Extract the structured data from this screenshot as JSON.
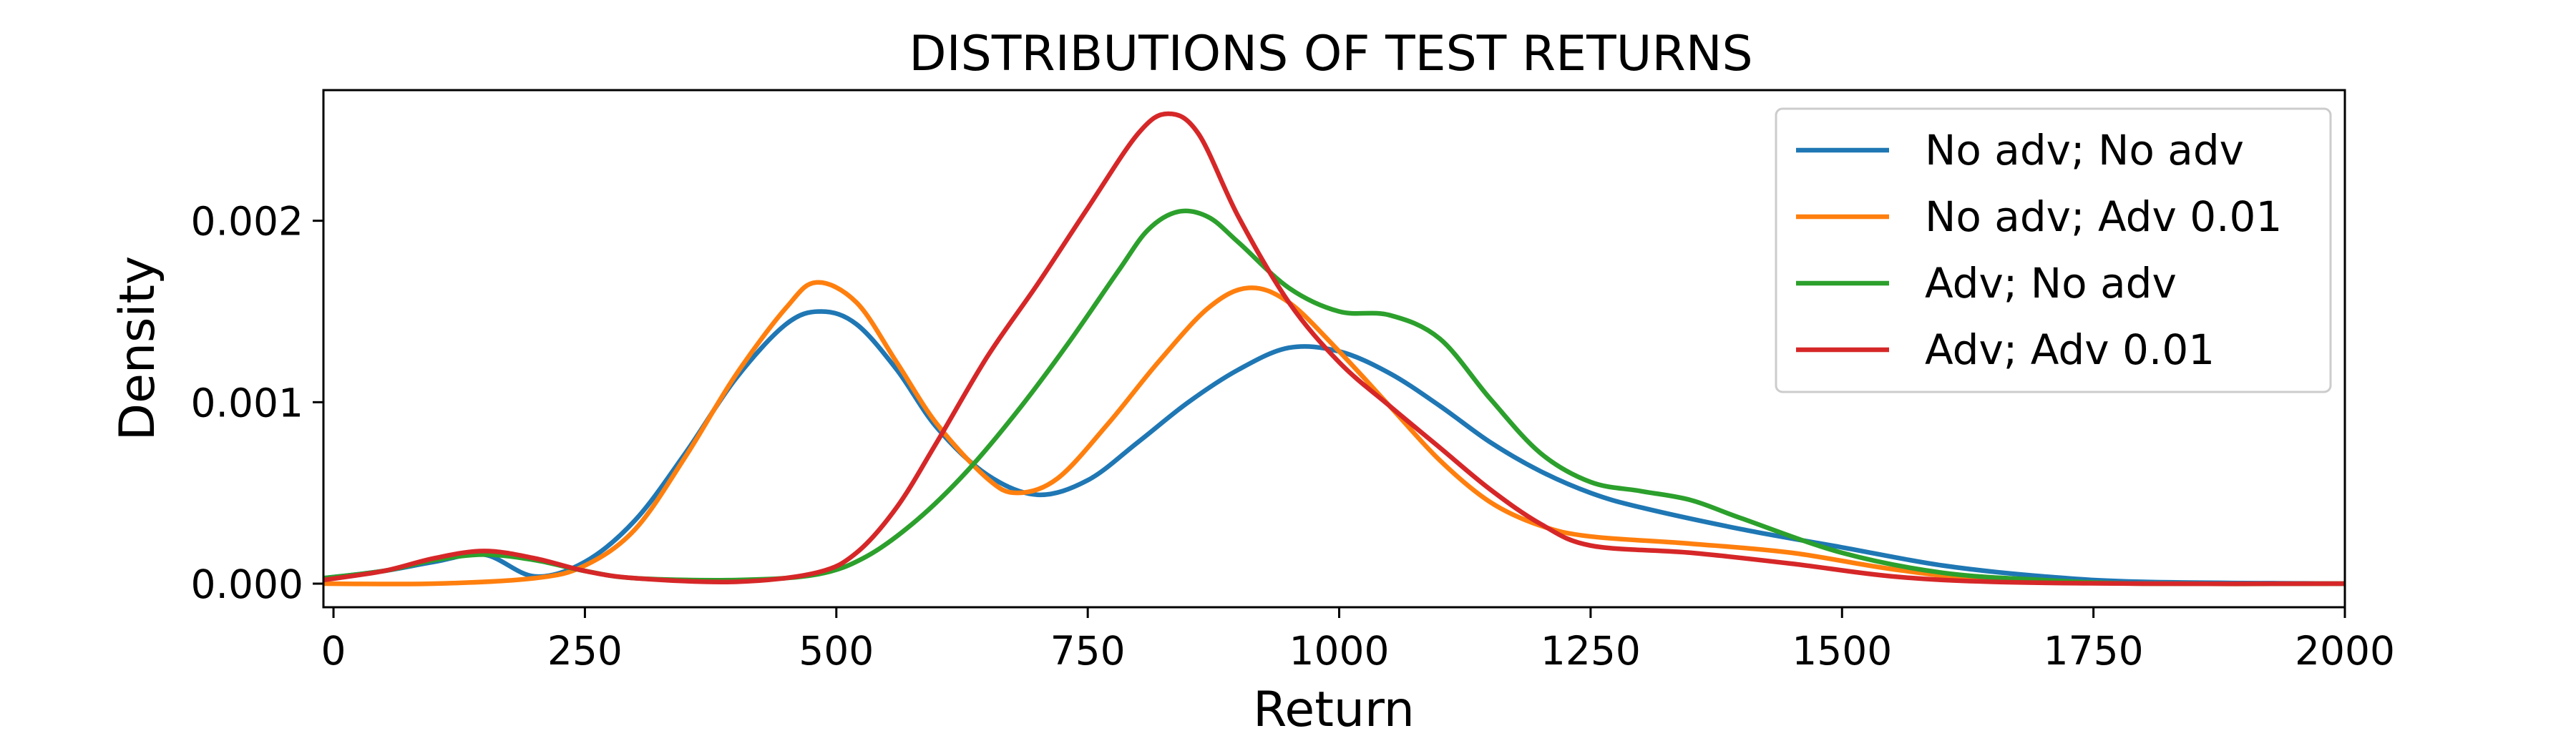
{
  "chart_data": {
    "type": "line",
    "title": "DISTRIBUTIONS OF TEST RETURNS",
    "xlabel": "Return",
    "ylabel": "Density",
    "xlim": [
      -10,
      2000
    ],
    "ylim": [
      -0.00013,
      0.00272
    ],
    "x_ticks": [
      0,
      250,
      500,
      750,
      1000,
      1250,
      1500,
      1750,
      2000
    ],
    "x_tick_labels": [
      "0",
      "250",
      "500",
      "750",
      "1000",
      "1250",
      "1500",
      "1750",
      "2000"
    ],
    "y_ticks": [
      0.0,
      0.001,
      0.002
    ],
    "y_tick_labels": [
      "0.000",
      "0.001",
      "0.002"
    ],
    "grid": false,
    "legend_position": "top-right",
    "series": [
      {
        "name": "No adv; No adv",
        "color": "#1f77b4",
        "points": [
          [
            -10,
            3e-05
          ],
          [
            50,
            7e-05
          ],
          [
            100,
            0.00012
          ],
          [
            150,
            0.00016
          ],
          [
            200,
            4e-05
          ],
          [
            250,
            0.00012
          ],
          [
            300,
            0.00035
          ],
          [
            350,
            0.00072
          ],
          [
            400,
            0.00113
          ],
          [
            450,
            0.00143
          ],
          [
            485,
            0.0015
          ],
          [
            520,
            0.00143
          ],
          [
            560,
            0.00118
          ],
          [
            600,
            0.00086
          ],
          [
            650,
            0.0006
          ],
          [
            700,
            0.00049
          ],
          [
            750,
            0.00057
          ],
          [
            800,
            0.00078
          ],
          [
            850,
            0.001
          ],
          [
            900,
            0.00118
          ],
          [
            950,
            0.0013
          ],
          [
            1000,
            0.00128
          ],
          [
            1050,
            0.00116
          ],
          [
            1100,
            0.00098
          ],
          [
            1150,
            0.00078
          ],
          [
            1200,
            0.00062
          ],
          [
            1250,
            0.0005
          ],
          [
            1300,
            0.00042
          ],
          [
            1400,
            0.0003
          ],
          [
            1500,
            0.0002
          ],
          [
            1600,
            0.0001
          ],
          [
            1700,
            4e-05
          ],
          [
            1800,
            1e-05
          ],
          [
            2000,
            0.0
          ]
        ]
      },
      {
        "name": "No adv; Adv 0.01",
        "color": "#ff7f0e",
        "points": [
          [
            -10,
            0.0
          ],
          [
            100,
            0.0
          ],
          [
            200,
            3e-05
          ],
          [
            250,
            0.0001
          ],
          [
            300,
            0.0003
          ],
          [
            350,
            0.0007
          ],
          [
            400,
            0.00115
          ],
          [
            450,
            0.00152
          ],
          [
            480,
            0.00166
          ],
          [
            520,
            0.00155
          ],
          [
            560,
            0.00122
          ],
          [
            600,
            0.00088
          ],
          [
            650,
            0.00058
          ],
          [
            680,
            0.0005
          ],
          [
            720,
            0.00058
          ],
          [
            770,
            0.00088
          ],
          [
            820,
            0.00122
          ],
          [
            870,
            0.00152
          ],
          [
            910,
            0.00163
          ],
          [
            950,
            0.00155
          ],
          [
            1000,
            0.00128
          ],
          [
            1050,
            0.00098
          ],
          [
            1100,
            0.00068
          ],
          [
            1150,
            0.00045
          ],
          [
            1200,
            0.00032
          ],
          [
            1250,
            0.00026
          ],
          [
            1350,
            0.00022
          ],
          [
            1450,
            0.00017
          ],
          [
            1550,
            8e-05
          ],
          [
            1650,
            2e-05
          ],
          [
            1800,
            0.0
          ],
          [
            2000,
            0.0
          ]
        ]
      },
      {
        "name": "Adv; No adv",
        "color": "#2ca02c",
        "points": [
          [
            -10,
            3e-05
          ],
          [
            50,
            7e-05
          ],
          [
            100,
            0.00013
          ],
          [
            150,
            0.00016
          ],
          [
            200,
            0.00013
          ],
          [
            250,
            7e-05
          ],
          [
            300,
            3e-05
          ],
          [
            400,
            2e-05
          ],
          [
            480,
            5e-05
          ],
          [
            530,
            0.00015
          ],
          [
            580,
            0.00035
          ],
          [
            630,
            0.00062
          ],
          [
            680,
            0.00095
          ],
          [
            730,
            0.00132
          ],
          [
            780,
            0.00172
          ],
          [
            810,
            0.00195
          ],
          [
            840,
            0.00205
          ],
          [
            870,
            0.00202
          ],
          [
            900,
            0.00188
          ],
          [
            950,
            0.00163
          ],
          [
            1000,
            0.0015
          ],
          [
            1050,
            0.00148
          ],
          [
            1100,
            0.00135
          ],
          [
            1150,
            0.00102
          ],
          [
            1200,
            0.00072
          ],
          [
            1250,
            0.00056
          ],
          [
            1300,
            0.00051
          ],
          [
            1350,
            0.00046
          ],
          [
            1400,
            0.00036
          ],
          [
            1500,
            0.00017
          ],
          [
            1600,
            6e-05
          ],
          [
            1700,
            2e-05
          ],
          [
            1800,
            0.0
          ],
          [
            2000,
            0.0
          ]
        ]
      },
      {
        "name": "Adv; Adv 0.01",
        "color": "#d62728",
        "points": [
          [
            -10,
            2e-05
          ],
          [
            50,
            7e-05
          ],
          [
            100,
            0.00014
          ],
          [
            150,
            0.00018
          ],
          [
            200,
            0.00014
          ],
          [
            250,
            7e-05
          ],
          [
            300,
            3e-05
          ],
          [
            400,
            1e-05
          ],
          [
            480,
            6e-05
          ],
          [
            520,
            0.00017
          ],
          [
            560,
            0.00042
          ],
          [
            600,
            0.00078
          ],
          [
            650,
            0.00125
          ],
          [
            700,
            0.00165
          ],
          [
            750,
            0.00207
          ],
          [
            800,
            0.00248
          ],
          [
            830,
            0.00259
          ],
          [
            860,
            0.00248
          ],
          [
            900,
            0.00202
          ],
          [
            950,
            0.00155
          ],
          [
            1000,
            0.00122
          ],
          [
            1050,
            0.00098
          ],
          [
            1100,
            0.00075
          ],
          [
            1150,
            0.00052
          ],
          [
            1200,
            0.00033
          ],
          [
            1250,
            0.00021
          ],
          [
            1350,
            0.00017
          ],
          [
            1450,
            0.00011
          ],
          [
            1550,
            4e-05
          ],
          [
            1650,
            1e-05
          ],
          [
            1800,
            0.0
          ],
          [
            2000,
            0.0
          ]
        ]
      }
    ]
  }
}
